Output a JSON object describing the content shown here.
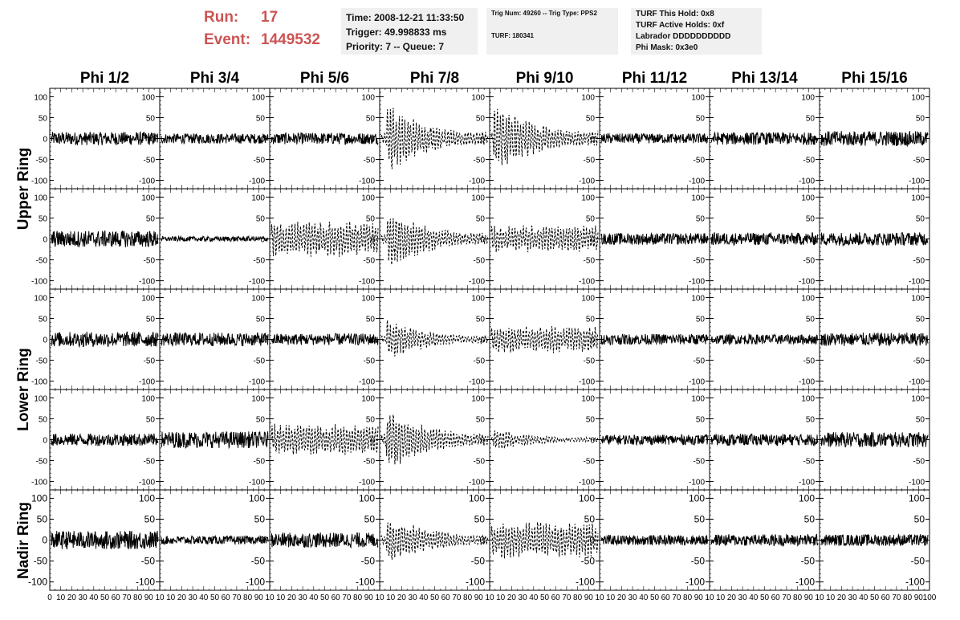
{
  "header": {
    "run_label": "Run:",
    "run_value": "17",
    "event_label": "Event:",
    "event_value": "1449532",
    "time": "Time: 2008-12-21 11:33:50",
    "trigger": "Trigger: 49.998833 ms",
    "priority": "Priority: 7 -- Queue: 7",
    "trig_num": "Trig Num: 49260 -- Trig Type: PPS2",
    "turf": "TURF: 180341",
    "turf_hold": "TURF This Hold: 0x8",
    "turf_active": "TURF Active Holds: 0xf",
    "labrador": "Labrador DDDDDDDDDD",
    "phi_mask": "Phi Mask: 0x3e0"
  },
  "columns": [
    "Phi 1/2",
    "Phi 3/4",
    "Phi 5/6",
    "Phi 7/8",
    "Phi 9/10",
    "Phi 11/12",
    "Phi 13/14",
    "Phi 15/16"
  ],
  "rows": [
    {
      "label": "Upper Ring",
      "rows": 2
    },
    {
      "label": "Lower Ring",
      "rows": 2
    },
    {
      "label": "Nadir Ring",
      "rows": 1
    }
  ],
  "chart_data": {
    "type": "line",
    "layout": "grid of waveform panels, 5 rows x 8 columns",
    "xlim": [
      0,
      100
    ],
    "ylim": [
      -120,
      120
    ],
    "x_ticks": [
      "0",
      "10",
      "20",
      "30",
      "40",
      "50",
      "60",
      "70",
      "80",
      "90",
      "100"
    ],
    "x_tick_row": "0 10 20 30 40 50 60 70 80 90 10 10 20 30 40 50 60 70 80 90 10 10 20 30 40 50 60 70 80 90 10 10 20 30 40 50 60 70 80 90 10 10 20 30 40 50 60 70 80 90 10 10 20 30 40 50 60 70 80 90 10 10 20 30 40 50 60 70 80 90 10 10 20 30 40 50 60 70 80 90 100",
    "y_ticks": [
      "100",
      "50",
      "0",
      "-50",
      "-100"
    ],
    "panels": [
      [
        {
          "amp": 16,
          "style": "solid"
        },
        {
          "amp": 12,
          "style": "solid"
        },
        {
          "amp": 14,
          "style": "solid"
        },
        {
          "amp": 80,
          "style": "dashed",
          "decay": true
        },
        {
          "amp": 85,
          "style": "dashed",
          "decay": true,
          "early": true
        },
        {
          "amp": 12,
          "style": "solid"
        },
        {
          "amp": 15,
          "style": "solid"
        },
        {
          "amp": 18,
          "style": "solid"
        }
      ],
      [
        {
          "amp": 20,
          "style": "solid"
        },
        {
          "amp": 6,
          "style": "solid"
        },
        {
          "amp": 40,
          "style": "dashed",
          "decay": false
        },
        {
          "amp": 70,
          "style": "dashed",
          "decay": true
        },
        {
          "amp": 30,
          "style": "dashed",
          "decay": false
        },
        {
          "amp": 14,
          "style": "solid"
        },
        {
          "amp": 15,
          "style": "solid"
        },
        {
          "amp": 16,
          "style": "solid"
        }
      ],
      [
        {
          "amp": 18,
          "style": "solid"
        },
        {
          "amp": 16,
          "style": "solid"
        },
        {
          "amp": 14,
          "style": "solid"
        },
        {
          "amp": 45,
          "style": "dashed",
          "decay": true
        },
        {
          "amp": 30,
          "style": "dashed",
          "decay": false
        },
        {
          "amp": 13,
          "style": "solid"
        },
        {
          "amp": 12,
          "style": "solid"
        },
        {
          "amp": 16,
          "style": "solid"
        }
      ],
      [
        {
          "amp": 15,
          "style": "solid"
        },
        {
          "amp": 20,
          "style": "solid"
        },
        {
          "amp": 35,
          "style": "dashed",
          "decay": false
        },
        {
          "amp": 75,
          "style": "dashed",
          "decay": true
        },
        {
          "amp": 25,
          "style": "dashed",
          "decay": true,
          "early": true
        },
        {
          "amp": 12,
          "style": "solid"
        },
        {
          "amp": 14,
          "style": "solid"
        },
        {
          "amp": 18,
          "style": "solid"
        }
      ],
      [
        {
          "amp": 22,
          "style": "solid"
        },
        {
          "amp": 10,
          "style": "solid"
        },
        {
          "amp": 18,
          "style": "solid"
        },
        {
          "amp": 60,
          "style": "dashed",
          "decay": true
        },
        {
          "amp": 40,
          "style": "dashed",
          "decay": false
        },
        {
          "amp": 12,
          "style": "solid"
        },
        {
          "amp": 14,
          "style": "solid"
        },
        {
          "amp": 14,
          "style": "solid"
        }
      ]
    ]
  }
}
